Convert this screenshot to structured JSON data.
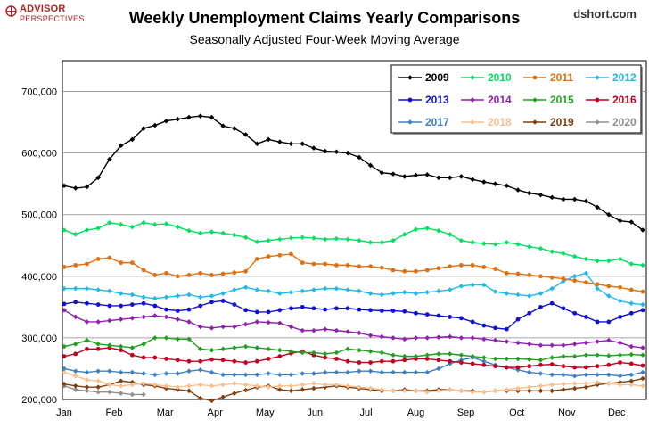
{
  "header": {
    "logo_line1": "ADVISOR",
    "logo_line2": "PERSPECTIVES",
    "credit": "dshort.com"
  },
  "chart_data": {
    "type": "line",
    "title": "Weekly Unemployment Claims Yearly Comparisons",
    "subtitle": "Seasonally Adjusted Four-Week Moving Average",
    "xlabel": "",
    "ylabel": "",
    "x_ticks": [
      "Jan",
      "Feb",
      "Mar",
      "Apr",
      "May",
      "Jun",
      "Jul",
      "Aug",
      "Sep",
      "Oct",
      "Nov",
      "Dec"
    ],
    "y_ticks": [
      "200,000",
      "300,000",
      "400,000",
      "500,000",
      "600,000",
      "700,000"
    ],
    "xlim": [
      1,
      52
    ],
    "ylim": [
      200000,
      750000
    ],
    "grid": true,
    "legend_position": "top-right",
    "series": [
      {
        "name": "2009",
        "color": "#000000",
        "values": [
          547000,
          543000,
          545000,
          560000,
          590000,
          612000,
          622000,
          640000,
          645000,
          652000,
          655000,
          658000,
          660000,
          658000,
          644000,
          640000,
          630000,
          615000,
          622000,
          618000,
          615000,
          615000,
          608000,
          603000,
          602000,
          600000,
          593000,
          580000,
          568000,
          566000,
          562000,
          564000,
          565000,
          560000,
          560000,
          562000,
          557000,
          553000,
          550000,
          547000,
          540000,
          535000,
          532000,
          528000,
          525000,
          525000,
          522000,
          512000,
          500000,
          490000,
          488000,
          475000
        ]
      },
      {
        "name": "2010",
        "color": "#00e060",
        "values": [
          475000,
          468000,
          475000,
          478000,
          487000,
          484000,
          480000,
          487000,
          484000,
          485000,
          480000,
          474000,
          470000,
          472000,
          470000,
          467000,
          463000,
          456000,
          458000,
          460000,
          462000,
          463000,
          462000,
          460000,
          461000,
          460000,
          458000,
          455000,
          455000,
          458000,
          468000,
          476000,
          478000,
          474000,
          468000,
          458000,
          455000,
          453000,
          452000,
          455000,
          452000,
          448000,
          445000,
          440000,
          437000,
          432000,
          428000,
          425000,
          425000,
          428000,
          420000,
          418000
        ]
      },
      {
        "name": "2011",
        "color": "#e07010",
        "values": [
          415000,
          418000,
          420000,
          428000,
          430000,
          422000,
          422000,
          410000,
          402000,
          405000,
          400000,
          402000,
          405000,
          402000,
          404000,
          406000,
          408000,
          428000,
          432000,
          434000,
          436000,
          422000,
          420000,
          420000,
          418000,
          418000,
          416000,
          416000,
          414000,
          410000,
          408000,
          408000,
          410000,
          413000,
          416000,
          418000,
          418000,
          415000,
          412000,
          405000,
          404000,
          402000,
          400000,
          398000,
          396000,
          393000,
          390000,
          387000,
          384000,
          382000,
          378000,
          375000
        ]
      },
      {
        "name": "2012",
        "color": "#20b8e8",
        "values": [
          380000,
          380000,
          380000,
          378000,
          376000,
          372000,
          370000,
          366000,
          364000,
          366000,
          368000,
          370000,
          366000,
          368000,
          372000,
          378000,
          382000,
          378000,
          376000,
          372000,
          374000,
          376000,
          378000,
          380000,
          380000,
          378000,
          376000,
          372000,
          370000,
          372000,
          374000,
          372000,
          374000,
          376000,
          378000,
          384000,
          386000,
          386000,
          375000,
          372000,
          370000,
          368000,
          372000,
          380000,
          392000,
          400000,
          405000,
          380000,
          368000,
          360000,
          356000,
          354000
        ]
      },
      {
        "name": "2013",
        "color": "#1010d0",
        "values": [
          355000,
          358000,
          356000,
          354000,
          352000,
          352000,
          354000,
          356000,
          352000,
          346000,
          344000,
          346000,
          352000,
          358000,
          360000,
          354000,
          345000,
          342000,
          342000,
          345000,
          348000,
          350000,
          348000,
          346000,
          348000,
          348000,
          346000,
          345000,
          344000,
          344000,
          343000,
          340000,
          338000,
          336000,
          334000,
          332000,
          326000,
          320000,
          316000,
          314000,
          330000,
          340000,
          350000,
          356000,
          348000,
          340000,
          334000,
          326000,
          326000,
          334000,
          340000,
          345000
        ]
      },
      {
        "name": "2014",
        "color": "#9020b0",
        "values": [
          345000,
          334000,
          326000,
          326000,
          328000,
          330000,
          332000,
          334000,
          336000,
          334000,
          330000,
          326000,
          318000,
          316000,
          318000,
          318000,
          322000,
          326000,
          325000,
          324000,
          318000,
          312000,
          312000,
          314000,
          312000,
          310000,
          308000,
          304000,
          302000,
          300000,
          298000,
          300000,
          300000,
          301000,
          302000,
          300000,
          300000,
          298000,
          296000,
          294000,
          292000,
          290000,
          288000,
          288000,
          288000,
          290000,
          292000,
          294000,
          296000,
          292000,
          286000,
          284000
        ]
      },
      {
        "name": "2015",
        "color": "#20a020",
        "values": [
          286000,
          290000,
          296000,
          290000,
          288000,
          286000,
          284000,
          290000,
          300000,
          300000,
          298000,
          298000,
          282000,
          280000,
          282000,
          284000,
          286000,
          284000,
          282000,
          280000,
          278000,
          276000,
          276000,
          274000,
          276000,
          282000,
          280000,
          278000,
          276000,
          272000,
          270000,
          270000,
          272000,
          274000,
          274000,
          272000,
          270000,
          268000,
          266000,
          266000,
          266000,
          265000,
          264000,
          268000,
          270000,
          270000,
          272000,
          272000,
          271000,
          272000,
          273000,
          272000
        ]
      },
      {
        "name": "2016",
        "color": "#c00020",
        "values": [
          270000,
          274000,
          282000,
          282000,
          284000,
          280000,
          272000,
          268000,
          268000,
          266000,
          264000,
          262000,
          262000,
          265000,
          264000,
          262000,
          260000,
          262000,
          266000,
          270000,
          275000,
          278000,
          272000,
          268000,
          266000,
          262000,
          260000,
          260000,
          262000,
          262000,
          264000,
          266000,
          266000,
          264000,
          262000,
          260000,
          258000,
          256000,
          254000,
          252000,
          252000,
          254000,
          256000,
          257000,
          254000,
          252000,
          252000,
          254000,
          256000,
          260000,
          258000,
          255000
        ]
      },
      {
        "name": "2017",
        "color": "#4080c0",
        "values": [
          250000,
          246000,
          244000,
          246000,
          246000,
          244000,
          244000,
          242000,
          240000,
          242000,
          242000,
          246000,
          248000,
          244000,
          240000,
          240000,
          240000,
          240000,
          242000,
          240000,
          240000,
          242000,
          242000,
          244000,
          244000,
          244000,
          246000,
          246000,
          244000,
          244000,
          244000,
          244000,
          244000,
          250000,
          258000,
          264000,
          268000,
          262000,
          256000,
          252000,
          248000,
          244000,
          242000,
          240000,
          240000,
          238000,
          240000,
          240000,
          240000,
          238000,
          240000,
          244000
        ]
      },
      {
        "name": "2018",
        "color": "#f8c090",
        "values": [
          244000,
          238000,
          232000,
          230000,
          224000,
          222000,
          224000,
          226000,
          224000,
          222000,
          220000,
          222000,
          224000,
          222000,
          224000,
          226000,
          224000,
          222000,
          220000,
          222000,
          222000,
          224000,
          226000,
          224000,
          224000,
          222000,
          220000,
          218000,
          216000,
          214000,
          214000,
          214000,
          212000,
          214000,
          216000,
          214000,
          212000,
          212000,
          214000,
          216000,
          218000,
          220000,
          222000,
          224000,
          225000,
          226000,
          226000,
          228000,
          226000,
          224000,
          224000,
          222000
        ]
      },
      {
        "name": "2019",
        "color": "#804010",
        "values": [
          225000,
          222000,
          220000,
          220000,
          224000,
          230000,
          228000,
          224000,
          222000,
          218000,
          216000,
          214000,
          202000,
          198000,
          204000,
          210000,
          215000,
          220000,
          222000,
          216000,
          214000,
          216000,
          218000,
          220000,
          222000,
          220000,
          218000,
          216000,
          214000,
          214000,
          216000,
          214000,
          214000,
          216000,
          216000,
          214000,
          214000,
          212000,
          214000,
          214000,
          214000,
          214000,
          214000,
          214000,
          216000,
          218000,
          220000,
          224000,
          226000,
          228000,
          230000,
          234000
        ]
      },
      {
        "name": "2020",
        "color": "#909090",
        "values": [
          222000,
          216000,
          214000,
          212000,
          212000,
          210000,
          208000,
          208000
        ]
      }
    ]
  }
}
